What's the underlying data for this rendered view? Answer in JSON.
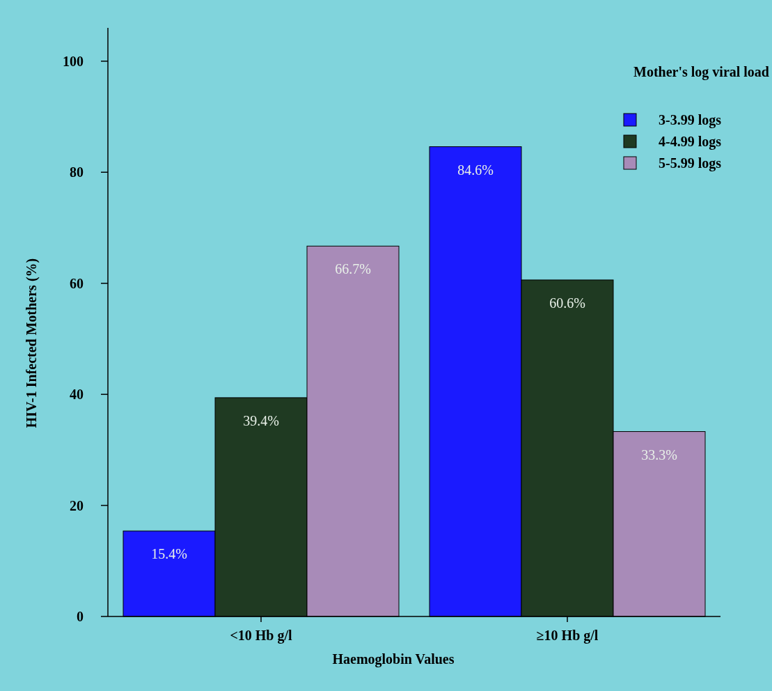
{
  "chart_data": {
    "type": "bar",
    "xlabel": "Haemoglobin Values",
    "ylabel": "HIV-1 Infected Mothers (%)",
    "legend_title": "Mother's log viral load",
    "categories": [
      "<10 Hb g/l",
      "≥10 Hb g/l"
    ],
    "series": [
      {
        "name": "3-3.99 logs",
        "color": "#1a1aff",
        "values": [
          15.4,
          84.6
        ],
        "value_labels": [
          "15.4%",
          "84.6%"
        ]
      },
      {
        "name": "4-4.99 logs",
        "color": "#1f3a22",
        "values": [
          39.4,
          60.6
        ],
        "value_labels": [
          "39.4%",
          "60.6%"
        ]
      },
      {
        "name": "5-5.99 logs",
        "color": "#a88bb8",
        "values": [
          66.7,
          33.3
        ],
        "value_labels": [
          "66.7%",
          "33.3%"
        ]
      }
    ],
    "ylim": [
      0,
      106
    ],
    "yticks": [
      0,
      20,
      40,
      60,
      80,
      100
    ],
    "grid": false,
    "legend": "top right"
  }
}
